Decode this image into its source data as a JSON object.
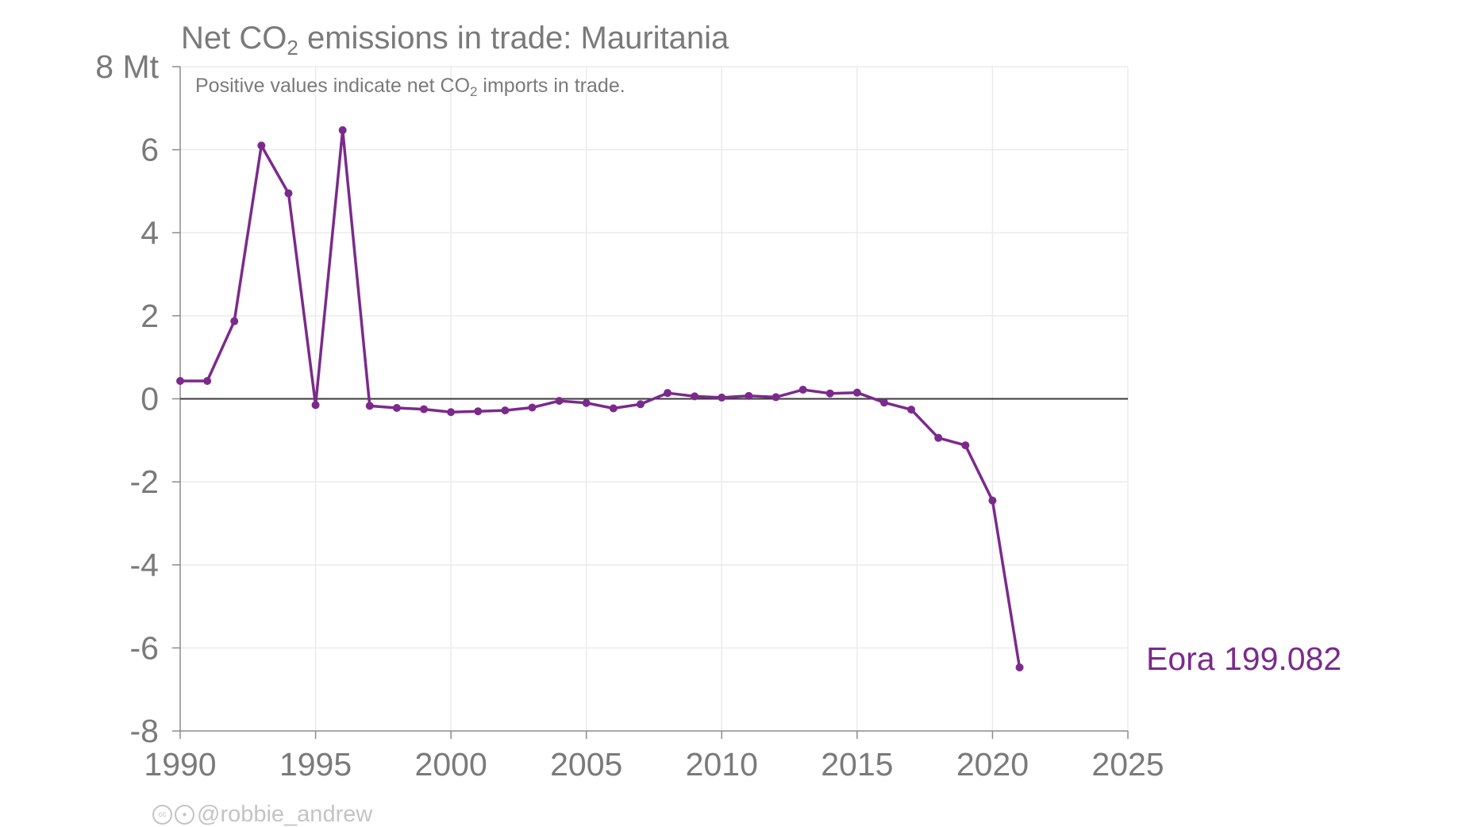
{
  "chart_data": {
    "type": "line",
    "title_prefix": "Net CO",
    "title_sub": "2",
    "title_suffix": " emissions in trade: Mauritania",
    "subtitle_prefix": "Positive values indicate net CO",
    "subtitle_sub": "2",
    "subtitle_suffix": " imports in trade.",
    "xlim": [
      1990,
      2025
    ],
    "ylim": [
      -8,
      8
    ],
    "x_ticks": [
      1990,
      1995,
      2000,
      2005,
      2010,
      2015,
      2020,
      2025
    ],
    "y_ticks": [
      -8,
      -6,
      -4,
      -2,
      0,
      2,
      4,
      6,
      8
    ],
    "y_tick_labels": [
      "-8",
      "-6",
      "-4",
      "-2",
      "0",
      "2",
      "4",
      "6",
      "8 Mt"
    ],
    "grid": true,
    "series": [
      {
        "name": "Eora 199.082",
        "color": "#7b2a8c",
        "x": [
          1990,
          1991,
          1992,
          1993,
          1994,
          1995,
          1996,
          1997,
          1998,
          1999,
          2000,
          2001,
          2002,
          2003,
          2004,
          2005,
          2006,
          2007,
          2008,
          2009,
          2010,
          2011,
          2012,
          2013,
          2014,
          2015,
          2016,
          2017,
          2018,
          2019,
          2020,
          2021
        ],
        "values": [
          0.43,
          0.43,
          1.87,
          6.1,
          4.95,
          -0.15,
          6.47,
          -0.17,
          -0.22,
          -0.25,
          -0.32,
          -0.3,
          -0.28,
          -0.21,
          -0.05,
          -0.1,
          -0.23,
          -0.13,
          0.14,
          0.06,
          0.03,
          0.07,
          0.04,
          0.22,
          0.13,
          0.15,
          -0.09,
          -0.26,
          -0.94,
          -1.12,
          -2.45,
          -6.47
        ]
      }
    ]
  },
  "credit": {
    "icons": [
      "creative-commons-icon",
      "attribution-icon"
    ],
    "handle": "@robbie_andrew"
  }
}
